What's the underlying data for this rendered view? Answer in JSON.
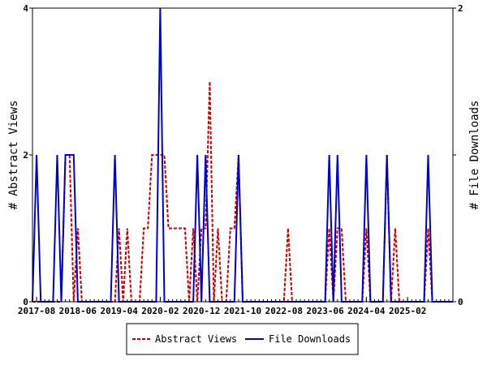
{
  "chart_data": {
    "type": "line",
    "title": "",
    "xlabel": "",
    "ylabel_left": "# Abstract Views",
    "ylabel_right": "# File Downloads",
    "ylim_left": [
      0,
      4
    ],
    "ylim_right": [
      0,
      2
    ],
    "yticks_left": [
      "0",
      "2",
      "4"
    ],
    "yticks_right": [
      "0",
      "1",
      "2"
    ],
    "x_start_month": "2017-07",
    "x_end_month": "2026-01",
    "x_tick_labels": [
      {
        "month": "2017-08",
        "label": "2017-08"
      },
      {
        "month": "2018-06",
        "label": "2018-06"
      },
      {
        "month": "2019-04",
        "label": "2019-04"
      },
      {
        "month": "2020-02",
        "label": "2020-02"
      },
      {
        "month": "2020-12",
        "label": "2020-12"
      },
      {
        "month": "2021-10",
        "label": "2021-10"
      },
      {
        "month": "2022-08",
        "label": "2022-08"
      },
      {
        "month": "2023-06",
        "label": "2023-06"
      },
      {
        "month": "2024-04",
        "label": "2024-04"
      },
      {
        "month": "2025-02",
        "label": "2025-02"
      }
    ],
    "legend_position": "bottom",
    "grid": false,
    "series": [
      {
        "name": "Abstract Views",
        "axis": "left",
        "color": "#cc0000",
        "style": "dashed",
        "points": [
          [
            "2018-03",
            2
          ],
          [
            "2018-04",
            2
          ],
          [
            "2018-06",
            1
          ],
          [
            "2019-04",
            1
          ],
          [
            "2019-06",
            1
          ],
          [
            "2019-10",
            1
          ],
          [
            "2019-11",
            1
          ],
          [
            "2019-12",
            2
          ],
          [
            "2020-01",
            2
          ],
          [
            "2020-02",
            2
          ],
          [
            "2020-03",
            2
          ],
          [
            "2020-04",
            1
          ],
          [
            "2020-05",
            1
          ],
          [
            "2020-06",
            1
          ],
          [
            "2020-07",
            1
          ],
          [
            "2020-08",
            1
          ],
          [
            "2020-10",
            1
          ],
          [
            "2020-12",
            1
          ],
          [
            "2021-01",
            1
          ],
          [
            "2021-02",
            3
          ],
          [
            "2021-04",
            1
          ],
          [
            "2021-07",
            1
          ],
          [
            "2021-08",
            1
          ],
          [
            "2021-09",
            2
          ],
          [
            "2022-09",
            1
          ],
          [
            "2023-07",
            1
          ],
          [
            "2023-09",
            1
          ],
          [
            "2023-10",
            1
          ],
          [
            "2024-04",
            1
          ],
          [
            "2024-09",
            2
          ],
          [
            "2024-11",
            1
          ],
          [
            "2025-07",
            1
          ]
        ]
      },
      {
        "name": "File Downloads",
        "axis": "right",
        "color": "#0000cc",
        "style": "solid",
        "points": [
          [
            "2017-08",
            1
          ],
          [
            "2018-01",
            1
          ],
          [
            "2018-03",
            1
          ],
          [
            "2018-04",
            1
          ],
          [
            "2018-05",
            1
          ],
          [
            "2019-03",
            1
          ],
          [
            "2020-02",
            2
          ],
          [
            "2020-11",
            1
          ],
          [
            "2021-01",
            1
          ],
          [
            "2021-09",
            1
          ],
          [
            "2023-07",
            1
          ],
          [
            "2023-09",
            1
          ],
          [
            "2024-04",
            1
          ],
          [
            "2024-09",
            1
          ],
          [
            "2025-07",
            1
          ]
        ]
      }
    ]
  }
}
